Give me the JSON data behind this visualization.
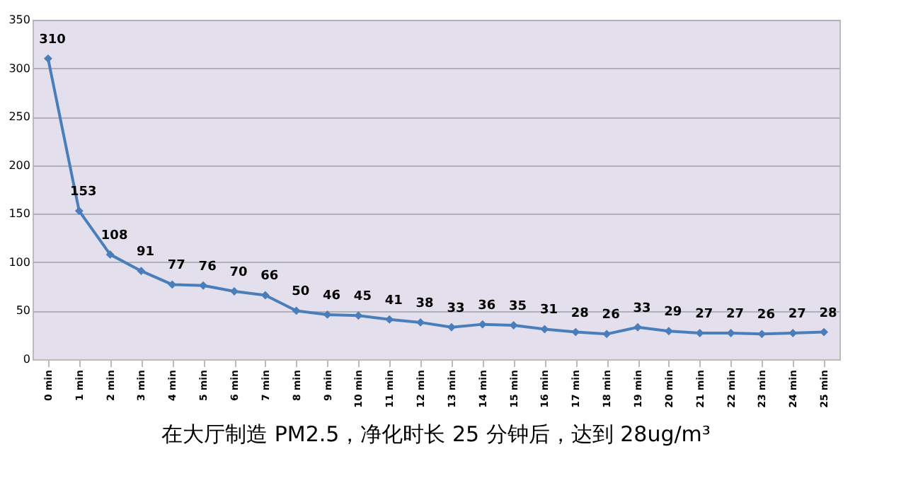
{
  "chart_data": {
    "type": "line",
    "title": "在大厅制造 PM2.5，净化时长 25 分钟后，达到 28ug/m³",
    "categories": [
      "0 min",
      "1 min",
      "2 min",
      "3 min",
      "4 min",
      "5 min",
      "6 min",
      "7 min",
      "8 min",
      "9 min",
      "10 min",
      "11 min",
      "12 min",
      "13 min",
      "14 min",
      "15 min",
      "16 min",
      "17 min",
      "18 min",
      "19 min",
      "20 min",
      "21 min",
      "22 min",
      "23 min",
      "24 min",
      "25 min"
    ],
    "series": [
      {
        "color": "#4a7ebb",
        "values": [
          310,
          153,
          108,
          91,
          77,
          76,
          70,
          66,
          50,
          46,
          45,
          41,
          38,
          33,
          36,
          35,
          31,
          28,
          26,
          33,
          29,
          27,
          27,
          26,
          27,
          28
        ]
      }
    ],
    "ylim": [
      0,
      350
    ],
    "yticks": [
      0,
      50,
      100,
      150,
      200,
      250,
      300,
      350
    ],
    "grid": "y",
    "legend": false,
    "marker": "diamond",
    "line_style": "solid",
    "data_labels": true
  }
}
